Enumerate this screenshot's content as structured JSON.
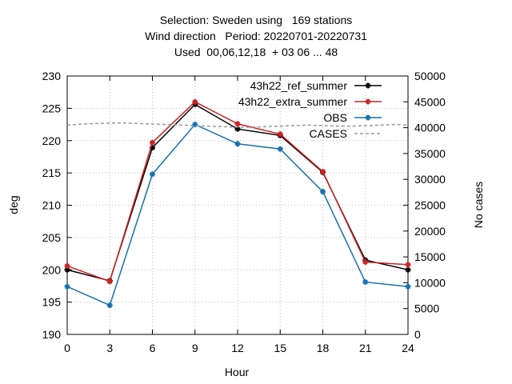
{
  "chart_data": {
    "type": "line",
    "title_lines": [
      "Selection: Sweden using   169 stations",
      "Wind direction   Period: 20220701-20220731",
      "Used  00,06,12,18  + 03 06 ... 48"
    ],
    "xlabel": "Hour",
    "ylabel": "deg",
    "y2label": "No cases",
    "x": [
      0,
      3,
      6,
      9,
      12,
      15,
      18,
      21,
      24
    ],
    "xlim": [
      0,
      24
    ],
    "ylim": [
      190,
      230
    ],
    "y2lim": [
      0,
      50000
    ],
    "xticks": [
      "0",
      "3",
      "6",
      "9",
      "12",
      "15",
      "18",
      "21",
      "24"
    ],
    "yticks": [
      "190",
      "195",
      "200",
      "205",
      "210",
      "215",
      "220",
      "225",
      "230"
    ],
    "y2ticks": [
      "0",
      "5000",
      "10000",
      "15000",
      "20000",
      "25000",
      "30000",
      "35000",
      "40000",
      "45000",
      "50000"
    ],
    "grid": true,
    "legend_position": "top-right",
    "series": [
      {
        "name": "43h22_ref_summer",
        "color": "#000000",
        "values": [
          200.0,
          198.3,
          218.9,
          225.6,
          221.8,
          220.8,
          215.1,
          201.5,
          200.0
        ]
      },
      {
        "name": "43h22_extra_summer",
        "color": "#cc2222",
        "values": [
          200.6,
          198.2,
          219.7,
          226.0,
          222.6,
          221.0,
          215.2,
          201.2,
          200.8
        ]
      },
      {
        "name": "OBS",
        "color": "#1570b0",
        "values": [
          197.4,
          194.5,
          214.8,
          222.5,
          219.5,
          218.7,
          212.1,
          198.1,
          197.4
        ]
      },
      {
        "name": "CASES",
        "color": "#999999",
        "dashed": true,
        "axis": "y2",
        "x": [
          0,
          1,
          2,
          3,
          4,
          5,
          6,
          7,
          8,
          9,
          10,
          11,
          12,
          13,
          14,
          15,
          16,
          17,
          18,
          19,
          20,
          21,
          22,
          23,
          24
        ],
        "values": [
          40500,
          40700,
          40800,
          40900,
          40900,
          40800,
          40700,
          40600,
          40500,
          40400,
          40300,
          40200,
          40100,
          40100,
          40200,
          40300,
          40400,
          40500,
          40400,
          40300,
          40300,
          40400,
          40500,
          40600,
          40500
        ]
      }
    ]
  }
}
